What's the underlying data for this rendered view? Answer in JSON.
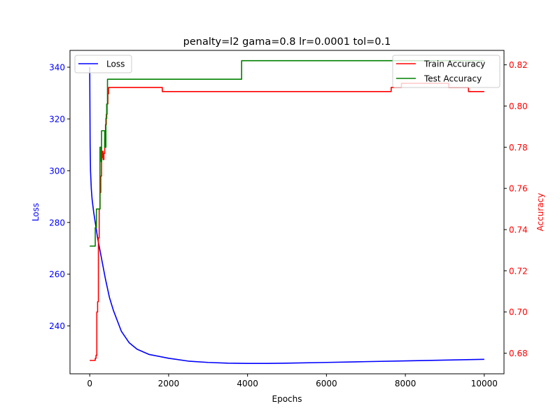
{
  "chart_data": {
    "type": "line",
    "title": "penalty=l2 gama=0.8 lr=0.0001 tol=0.1",
    "xlabel": "Epochs",
    "xlim": [
      -500,
      10500
    ],
    "x_ticks": [
      0,
      2000,
      4000,
      6000,
      8000,
      10000
    ],
    "left_axis": {
      "label": "Loss",
      "color": "#0000ff",
      "ylim": [
        221.5,
        346.5
      ],
      "ticks": [
        240,
        260,
        280,
        300,
        320,
        340
      ]
    },
    "right_axis": {
      "label": "Accuracy",
      "color": "#ff0000",
      "ylim": [
        0.67,
        0.827
      ],
      "ticks": [
        0.68,
        0.7,
        0.72,
        0.74,
        0.76,
        0.78,
        0.8,
        0.82
      ],
      "tick_labels": [
        "0.68",
        "0.70",
        "0.72",
        "0.74",
        "0.76",
        "0.78",
        "0.80",
        "0.82"
      ]
    },
    "legend_left": {
      "placement": "upper-left",
      "entries": [
        "Loss"
      ]
    },
    "legend_right": {
      "placement": "upper-right",
      "entries": [
        "Train Accuracy",
        "Test Accuracy"
      ]
    },
    "series": [
      {
        "name": "Loss",
        "axis": "left",
        "color": "#0000ff",
        "step": false,
        "x": [
          0,
          10,
          20,
          40,
          60,
          100,
          150,
          200,
          300,
          400,
          500,
          600,
          800,
          1000,
          1200,
          1500,
          2000,
          2500,
          3000,
          3500,
          4000,
          4500,
          5000,
          6000,
          7000,
          8000,
          9000,
          10000
        ],
        "y": [
          340,
          310,
          300,
          293,
          289,
          284,
          279,
          274,
          266,
          258,
          251,
          246,
          238,
          233.5,
          231,
          229,
          227.5,
          226.4,
          225.9,
          225.6,
          225.5,
          225.5,
          225.6,
          225.9,
          226.2,
          226.5,
          226.8,
          227.1
        ]
      },
      {
        "name": "Train Accuracy",
        "axis": "right",
        "color": "#ff0000",
        "step": true,
        "x": [
          0,
          140,
          160,
          180,
          200,
          220,
          240,
          260,
          280,
          300,
          320,
          340,
          360,
          380,
          400,
          420,
          440,
          460,
          480,
          500,
          1840,
          7640,
          7900,
          9100,
          9600,
          10000
        ],
        "y": [
          0.6765,
          0.6775,
          0.679,
          0.7,
          0.705,
          0.736,
          0.75,
          0.758,
          0.766,
          0.775,
          0.778,
          0.774,
          0.777,
          0.784,
          0.791,
          0.796,
          0.801,
          0.806,
          0.809,
          0.809,
          0.807,
          0.809,
          0.811,
          0.809,
          0.807,
          0.807
        ]
      },
      {
        "name": "Test Accuracy",
        "axis": "right",
        "color": "#008000",
        "step": true,
        "x": [
          0,
          140,
          170,
          260,
          290,
          300,
          330,
          380,
          410,
          430,
          450,
          3850,
          10000
        ],
        "y": [
          0.732,
          0.741,
          0.75,
          0.78,
          0.773,
          0.788,
          0.788,
          0.78,
          0.794,
          0.801,
          0.813,
          0.822,
          0.822
        ]
      }
    ]
  }
}
